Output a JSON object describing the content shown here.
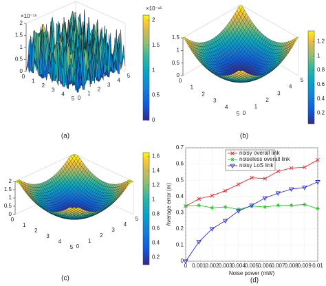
{
  "chart_data": [
    {
      "type": "surface",
      "label": "(a)",
      "zlim": [
        0,
        2
      ],
      "zticks": [
        0,
        0.5,
        1,
        1.5,
        2
      ],
      "zexponent": "×10⁻¹⁵",
      "xticks": [
        0,
        1,
        2,
        3,
        4,
        5
      ],
      "yticks": [
        0,
        1,
        2,
        3,
        4,
        5
      ],
      "colorbar_lim": [
        0,
        2.1
      ],
      "colorbar_ticks": [
        0,
        0.5,
        1,
        1.5,
        2
      ],
      "colorbar_exponent": "×10⁻¹⁵"
    },
    {
      "type": "surface",
      "label": "(b)",
      "zlim": [
        0,
        1.5
      ],
      "zticks": [
        0,
        0.5,
        1,
        1.5
      ],
      "xticks": [
        0,
        1,
        2,
        3,
        4,
        5
      ],
      "yticks": [
        0,
        1,
        2,
        3,
        4,
        5
      ],
      "colorbar_lim": [
        0.05,
        1.35
      ],
      "colorbar_ticks": [
        0.2,
        0.4,
        0.6,
        0.8,
        1,
        1.2
      ]
    },
    {
      "type": "surface",
      "label": "(c)",
      "zlim": [
        0,
        2
      ],
      "zticks": [
        0,
        0.5,
        1,
        1.5,
        2
      ],
      "xticks": [
        0,
        1,
        2,
        3,
        4,
        5
      ],
      "yticks": [
        0,
        1,
        2,
        3,
        4,
        5
      ],
      "colorbar_lim": [
        0.1,
        1.65
      ],
      "colorbar_ticks": [
        0.2,
        0.4,
        0.6,
        0.8,
        1,
        1.2,
        1.4,
        1.6
      ]
    },
    {
      "type": "line",
      "label": "(d)",
      "xlabel": "Noise power (mW)",
      "ylabel": "Average error (m)",
      "x": [
        0,
        0.001,
        0.002,
        0.003,
        0.004,
        0.005,
        0.006,
        0.007,
        0.008,
        0.009,
        0.01
      ],
      "xlim": [
        0,
        0.01
      ],
      "xticks": [
        0,
        0.001,
        0.002,
        0.003,
        0.004,
        0.005,
        0.006,
        0.007,
        0.008,
        0.009,
        0.01
      ],
      "ylim": [
        0,
        0.7
      ],
      "yticks": [
        0,
        0.1,
        0.2,
        0.3,
        0.4,
        0.5,
        0.6,
        0.7
      ],
      "grid": true,
      "legend": "upper left",
      "series": [
        {
          "name": "noisy overall link",
          "color": "#e8262a",
          "marker": "x",
          "values": [
            0.34,
            0.385,
            0.405,
            0.435,
            0.475,
            0.515,
            0.51,
            0.555,
            0.575,
            0.58,
            0.625
          ]
        },
        {
          "name": "noiseless overall link",
          "color": "#22c422",
          "marker": "asterisk",
          "values": [
            0.34,
            0.345,
            0.33,
            0.335,
            0.32,
            0.34,
            0.335,
            0.345,
            0.345,
            0.35,
            0.325
          ]
        },
        {
          "name": "noisy LoS link",
          "color": "#2b2fd6",
          "marker": "triangle-down",
          "values": [
            0,
            0.12,
            0.2,
            0.25,
            0.31,
            0.345,
            0.39,
            0.42,
            0.445,
            0.455,
            0.49
          ]
        }
      ]
    }
  ]
}
